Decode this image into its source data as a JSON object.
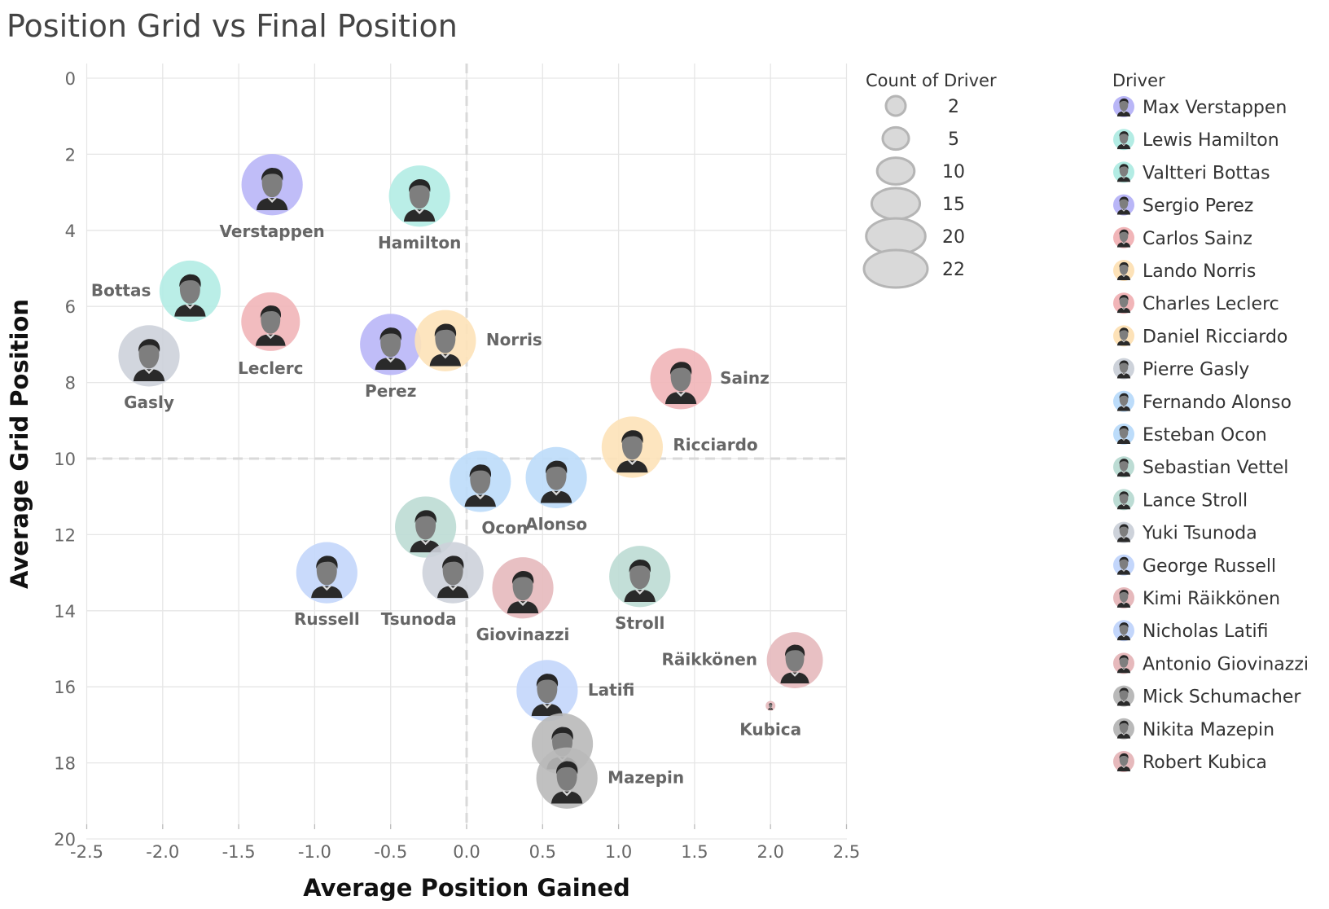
{
  "title": "Position Grid vs Final Position",
  "chart_data": {
    "type": "scatter",
    "title": "Position Grid vs Final Position",
    "xlabel": "Average Position Gained",
    "ylabel": "Average Grid Position",
    "xlim": [
      -2.5,
      2.5
    ],
    "ylim": [
      0,
      20
    ],
    "y_reversed": true,
    "x_ticks": [
      "-2.5",
      "-2.0",
      "-1.5",
      "-1.0",
      "-0.5",
      "0.0",
      "0.5",
      "1.0",
      "1.5",
      "2.0",
      "2.5"
    ],
    "y_ticks": [
      "0",
      "2",
      "4",
      "6",
      "8",
      "10",
      "12",
      "14",
      "16",
      "18",
      "20"
    ],
    "reference_lines": {
      "x": 0,
      "y": 10
    },
    "grid": true,
    "size_legend": {
      "title": "Count of Driver",
      "entries": [
        "2",
        "5",
        "10",
        "15",
        "20",
        "22"
      ]
    },
    "driver_legend": {
      "title": "Driver"
    },
    "points": [
      {
        "label": "Verstappen",
        "driver": "Max Verstappen",
        "x": -1.28,
        "y": 2.8,
        "count": 22,
        "color": "#b9b6f7"
      },
      {
        "label": "Hamilton",
        "driver": "Lewis Hamilton",
        "x": -0.31,
        "y": 3.1,
        "count": 22,
        "color": "#b3ece4"
      },
      {
        "label": "Bottas",
        "driver": "Valtteri Bottas",
        "x": -1.82,
        "y": 5.6,
        "count": 22,
        "color": "#b3ece4"
      },
      {
        "label": "Perez",
        "driver": "Sergio Perez",
        "x": -0.5,
        "y": 7.0,
        "count": 22,
        "color": "#b9b6f7"
      },
      {
        "label": "Sainz",
        "driver": "Carlos Sainz",
        "x": 1.41,
        "y": 7.9,
        "count": 22,
        "color": "#f1b5b8"
      },
      {
        "label": "Norris",
        "driver": "Lando Norris",
        "x": -0.14,
        "y": 6.9,
        "count": 22,
        "color": "#fde2b8"
      },
      {
        "label": "Leclerc",
        "driver": "Charles Leclerc",
        "x": -1.29,
        "y": 6.4,
        "count": 21,
        "color": "#f1b5b8"
      },
      {
        "label": "Ricciardo",
        "driver": "Daniel Ricciardo",
        "x": 1.09,
        "y": 9.7,
        "count": 22,
        "color": "#fde2b8"
      },
      {
        "label": "Gasly",
        "driver": "Pierre Gasly",
        "x": -2.09,
        "y": 7.3,
        "count": 22,
        "color": "#cdd2da"
      },
      {
        "label": "Alonso",
        "driver": "Fernando Alonso",
        "x": 0.59,
        "y": 10.5,
        "count": 22,
        "color": "#bcdcfa"
      },
      {
        "label": "Ocon",
        "driver": "Esteban Ocon",
        "x": 0.09,
        "y": 10.6,
        "count": 22,
        "color": "#bcdcfa"
      },
      {
        "label": "",
        "driver": "Sebastian Vettel",
        "x": -0.27,
        "y": 11.8,
        "count": 22,
        "color": "#bcdcd4"
      },
      {
        "label": "Stroll",
        "driver": "Lance Stroll",
        "x": 1.14,
        "y": 13.1,
        "count": 22,
        "color": "#bcdcd4"
      },
      {
        "label": "Tsunoda",
        "driver": "Yuki Tsunoda",
        "x": -0.09,
        "y": 13.0,
        "count": 22,
        "color": "#cdd2da"
      },
      {
        "label": "Russell",
        "driver": "George Russell",
        "x": -0.92,
        "y": 13.0,
        "count": 22,
        "color": "#c3d6fb"
      },
      {
        "label": "Räikkönen",
        "driver": "Kimi Räikkönen",
        "x": 2.16,
        "y": 15.3,
        "count": 20,
        "color": "#e6b9bc"
      },
      {
        "label": "Latifi",
        "driver": "Nicholas Latifi",
        "x": 0.53,
        "y": 16.1,
        "count": 22,
        "color": "#c3d6fb"
      },
      {
        "label": "Giovinazzi",
        "driver": "Antonio Giovinazzi",
        "x": 0.37,
        "y": 13.4,
        "count": 22,
        "color": "#e6b9bc"
      },
      {
        "label": "",
        "driver": "Mick Schumacher",
        "x": 0.63,
        "y": 17.5,
        "count": 22,
        "color": "#b9b9b9"
      },
      {
        "label": "Mazepin",
        "driver": "Nikita Mazepin",
        "x": 0.66,
        "y": 18.4,
        "count": 22,
        "color": "#b9b9b9"
      },
      {
        "label": "Kubica",
        "driver": "Robert Kubica",
        "x": 2.0,
        "y": 16.5,
        "count": 2,
        "color": "#e6b9bc"
      }
    ]
  }
}
